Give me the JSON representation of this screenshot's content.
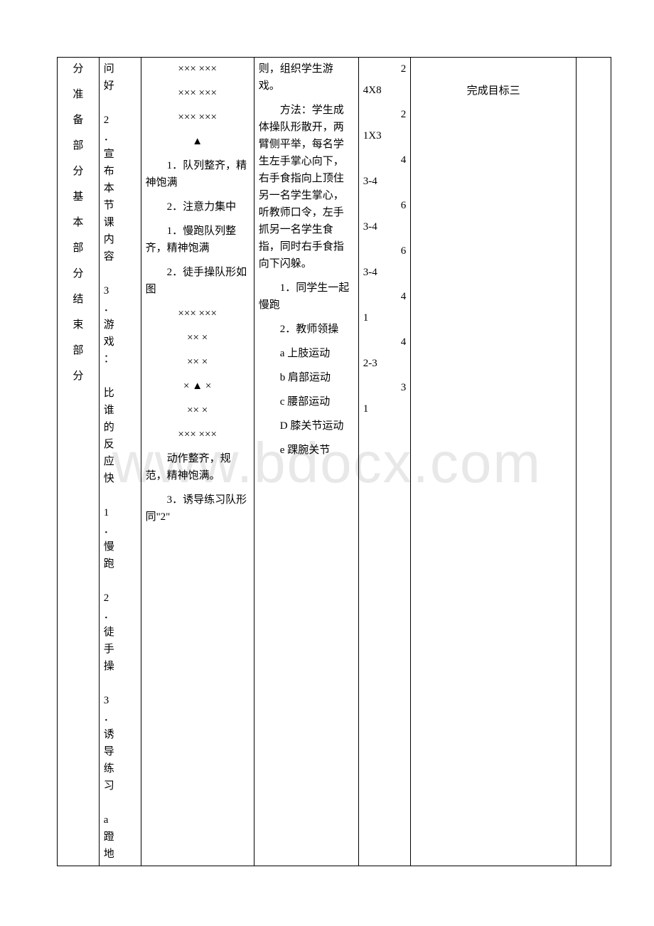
{
  "col1": {
    "chars": [
      "分",
      "准",
      "备",
      "部",
      "分",
      "基",
      "本",
      "部",
      "分",
      "结",
      "束",
      "部",
      "分"
    ]
  },
  "col2": {
    "text": "问好\n\n2．宣布本节课内容\n\n3．游戏：\n\n比谁的反应快\n\n1．慢跑\n\n2．徒手操\n\n3．诱导练习\n\na 蹬地"
  },
  "col3": {
    "row1a": "××× ×××",
    "row1b": "××× ×××",
    "row1c": "××× ×××",
    "triangle": "▲",
    "item1": "1．队列整齐，精神饱满",
    "item2": "2．注意力集中",
    "item3": "1．慢跑队列整齐，精神饱满",
    "item4": "2．徒手操队形如图",
    "row2a": "××× ×××",
    "row2b": "×× ×",
    "row2c": "×× ×",
    "row2d": "× ▲ ×",
    "row2e": "×× ×",
    "row2f": "××× ×××",
    "item5": "动作整齐，规范，精神饱满。",
    "item6": "3．诱导练习队形同\"2\""
  },
  "col4": {
    "para1": "则，组织学生游戏。",
    "para2": "方法：学生成体操队形散开，两臂侧平举，每名学生左手掌心向下，右手食指向上顶住另一名学生掌心，听教师口令，左手抓另一名学生食指，同时右手食指向下闪躲。",
    "item1": "1．同学生一起慢跑",
    "item2": "2．教师领操",
    "itemA": "a 上肢运动",
    "itemB": "b 肩部运动",
    "itemC": "c 腰部运动",
    "itemD": "D 膝关节运动",
    "itemE": "e 踝腕关节"
  },
  "col5": {
    "items": [
      "2",
      "4X8",
      "2",
      "1X3",
      "4",
      "3-4",
      "6",
      "3-4",
      "6",
      "3-4",
      "4",
      "1",
      "4",
      "2-3",
      "3",
      "1"
    ]
  },
  "col6": {
    "text": "完成目标三"
  }
}
